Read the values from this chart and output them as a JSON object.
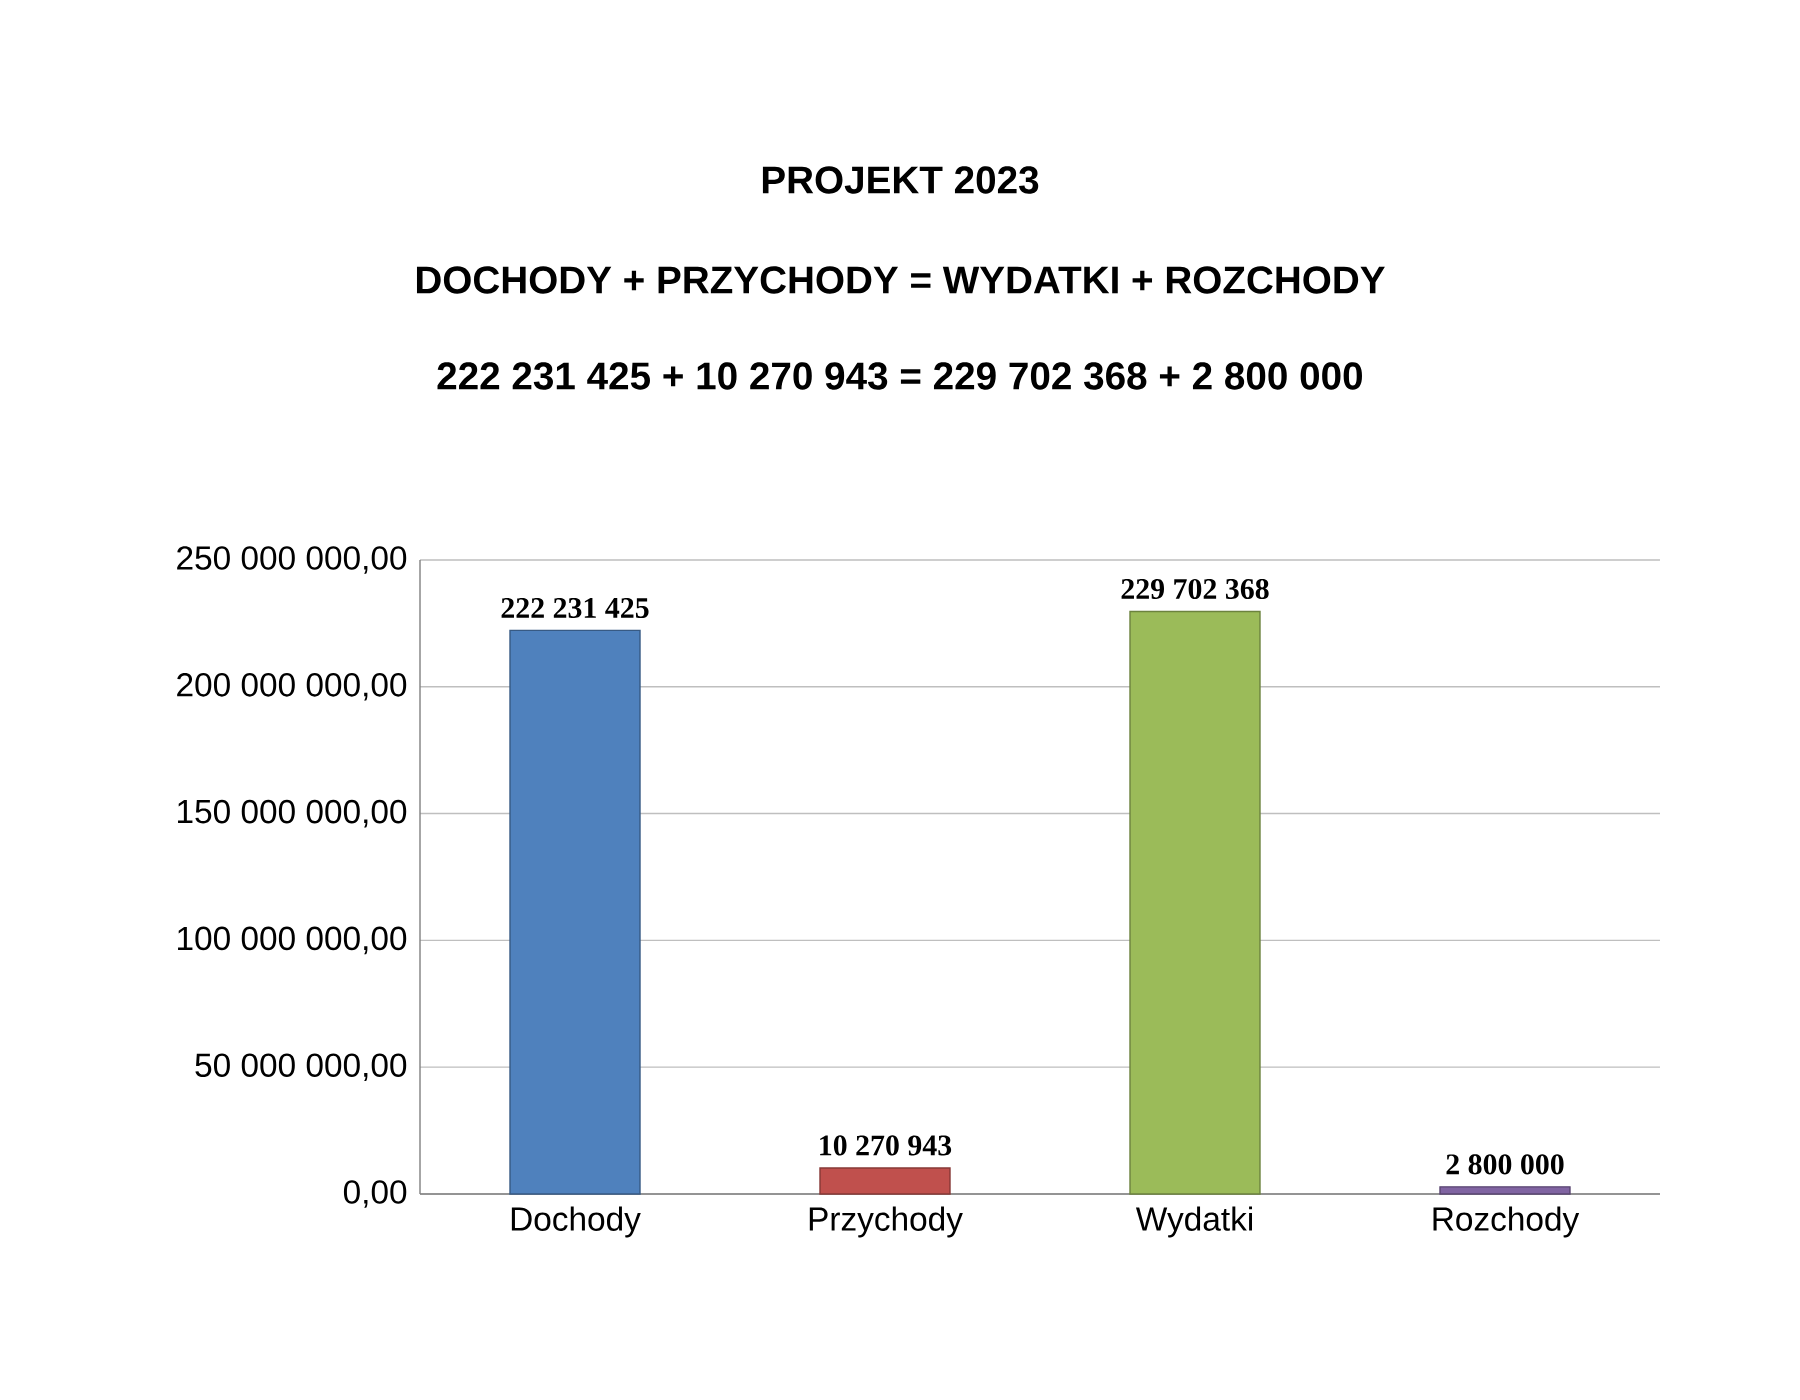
{
  "chart_data": {
    "type": "bar",
    "title": "PROJEKT 2023",
    "subtitle": "DOCHODY + PRZYCHODY = WYDATKI + ROZCHODY",
    "annotations": [
      "222 231 425 + 10 270 943 = 229 702 368 + 2 800 000"
    ],
    "categories": [
      "Dochody",
      "Przychody",
      "Wydatki",
      "Rozchody"
    ],
    "values": [
      222231425,
      10270943,
      229702368,
      2800000
    ],
    "colors": [
      "#4f81bd",
      "#c0504d",
      "#9bbb59",
      "#8064a2"
    ],
    "value_labels": [
      "222 231 425",
      "10 270 943",
      "229 702 368",
      "2 800 000"
    ],
    "ylim": [
      0,
      250000000
    ],
    "yticks": [
      {
        "value": 0,
        "label": "0,00"
      },
      {
        "value": 50000000,
        "label": "50 000 000,00"
      },
      {
        "value": 100000000,
        "label": "100 000 000,00"
      },
      {
        "value": 150000000,
        "label": "150 000 000,00"
      },
      {
        "value": 200000000,
        "label": "200 000 000,00"
      },
      {
        "value": 250000000,
        "label": "250 000 000,00"
      }
    ],
    "grid": "y"
  }
}
